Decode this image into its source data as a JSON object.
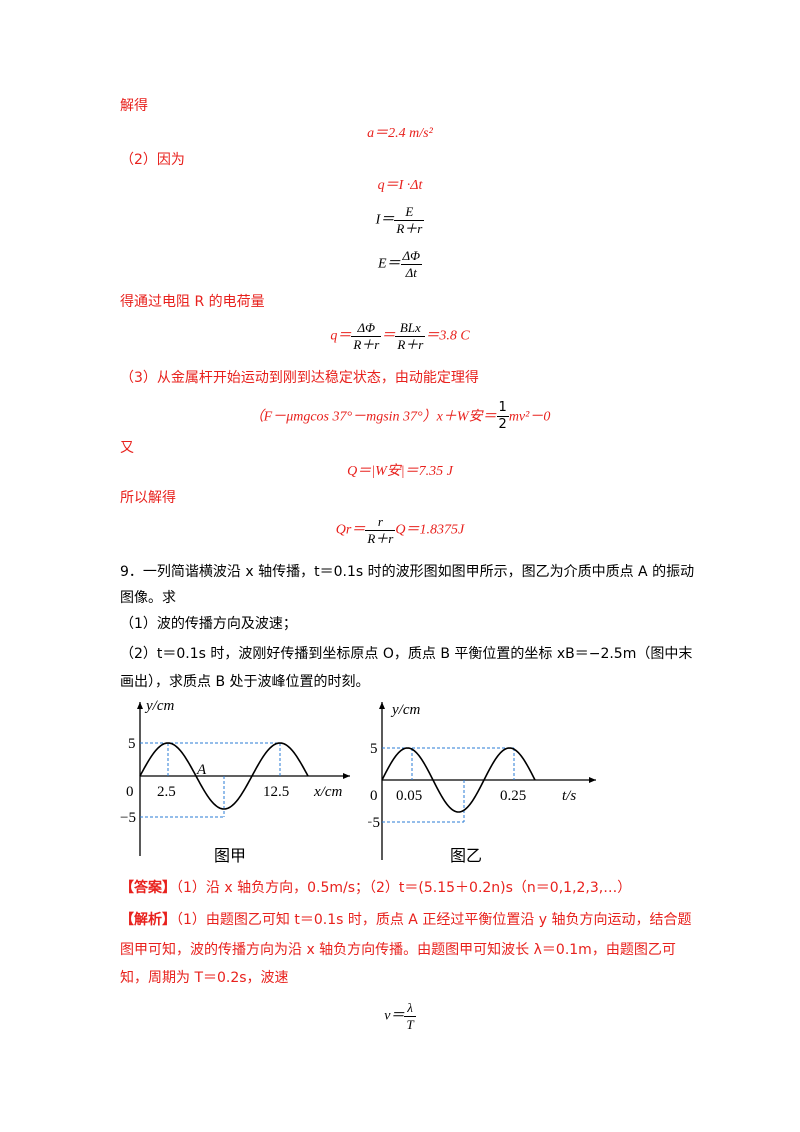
{
  "lines": {
    "jiede1": "解得",
    "eq_a": "a＝2.4 m/s²",
    "p2": "（2）因为",
    "eq_q1": "q＝I ·Δt",
    "eq_I_lhs": "I＝",
    "eq_I_num": "E",
    "eq_I_den": "R＋r",
    "eq_E_lhs": "E＝",
    "eq_E_num": "ΔΦ",
    "eq_E_den": "Δt",
    "de_q": "得通过电阻 R 的电荷量",
    "eq_q2_lhs": "q＝",
    "eq_q2_num1": "ΔΦ",
    "eq_q2_den1": "R＋r",
    "eq_q2_mid": "＝",
    "eq_q2_num2": "BLx",
    "eq_q2_den2": "R＋r",
    "eq_q2_rhs": "＝3.8 C",
    "p3": "（3）从金属杆开始运动到刚到达稳定状态，由动能定理得",
    "eq_energy_lhs": "（F－μmgcos 37°－mgsin 37°）x＋W安＝",
    "eq_energy_num": "1",
    "eq_energy_den": "2",
    "eq_energy_rhs": "mv²－0",
    "you": "又",
    "eq_Q": "Q＝|W安|＝7.35 J",
    "suoyi": "所以解得",
    "eq_Qr_lhs": "Qr＝",
    "eq_Qr_num": "r",
    "eq_Qr_den": "R＋r",
    "eq_Qr_rhs": "Q＝1.8375J",
    "q9_line1": "9．一列简谐横波沿 x 轴传播，t＝0.1s 时的波形图如图甲所示，图乙为介质中质点 A 的振动",
    "q9_line2": "图像。求",
    "q9_sub1": "（1）波的传播方向及波速；",
    "q9_sub2_line1": "（2）t＝0.1s 时，波刚好传播到坐标原点 O，质点 B 平衡位置的坐标 xB＝−2.5m（图中末",
    "q9_sub2_line2": "画出），求质点 B 处于波峰位置的时刻。",
    "answer_label": "【答案】",
    "answer_text": "（1）沿 x 轴负方向，0.5m/s；（2）t＝(5.15＋0.2n)s（n＝0,1,2,3,…）",
    "analysis_label": "【解析】",
    "analysis_line1": "（1）由题图乙可知 t＝0.1s 时，质点 A 正经过平衡位置沿 y 轴负方向运动，结合题",
    "analysis_line2": "图甲可知，波的传播方向为沿 x 轴负方向传播。由题图甲可知波长 λ＝0.1m，由题图乙可",
    "analysis_line3": "知，周期为 T＝0.2s，波速",
    "eq_v_lhs": "v＝",
    "eq_v_num": "λ",
    "eq_v_den": "T"
  },
  "figure_jia": {
    "caption": "图甲",
    "ylabel": "y/cm",
    "xlabel": "x/cm",
    "origin": "0",
    "tick_x1": "2.5",
    "tick_x2": "12.5",
    "tick_y_pos": "5",
    "tick_y_neg": "−5",
    "point_label": "A"
  },
  "figure_yi": {
    "caption": "图乙",
    "ylabel": "y/cm",
    "xlabel": "t/s",
    "origin": "0",
    "tick_x1": "0.05",
    "tick_x2": "0.25",
    "tick_y_pos": "5",
    "tick_y_neg": "−5"
  },
  "colors": {
    "accent": "#e8211d",
    "dashed": "#2a7bd4"
  }
}
